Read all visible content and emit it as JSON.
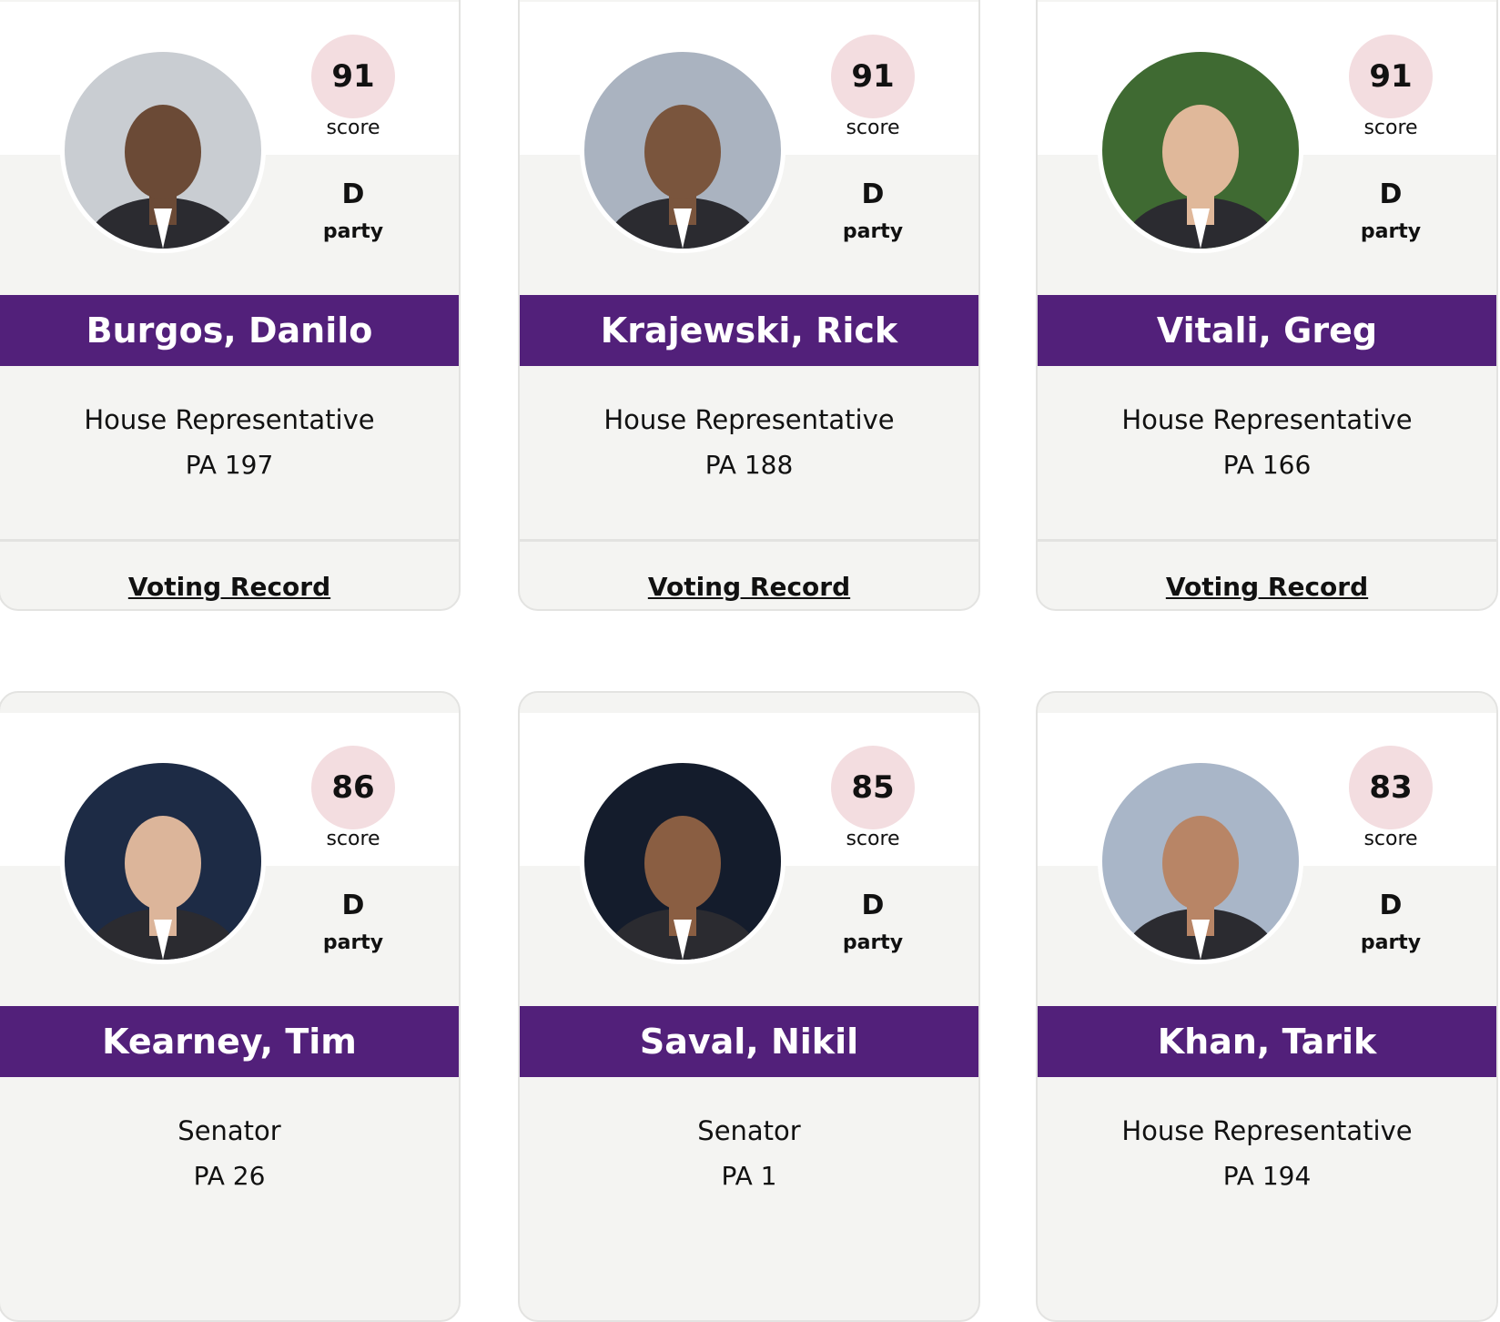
{
  "cards": [
    {
      "score": 91,
      "score_label": "score",
      "party": "D",
      "party_label": "party",
      "name": "Burgos, Danilo",
      "role": "House Representative",
      "district": "PA 197",
      "link": "Voting Record"
    },
    {
      "score": 91,
      "score_label": "score",
      "party": "D",
      "party_label": "party",
      "name": "Krajewski, Rick",
      "role": "House Representative",
      "district": "PA 188",
      "link": "Voting Record"
    },
    {
      "score": 91,
      "score_label": "score",
      "party": "D",
      "party_label": "party",
      "name": "Vitali, Greg",
      "role": "House Representative",
      "district": "PA 166",
      "link": "Voting Record"
    },
    {
      "score": 86,
      "score_label": "score",
      "party": "D",
      "party_label": "party",
      "name": "Kearney, Tim",
      "role": "Senator",
      "district": "PA 26"
    },
    {
      "score": 85,
      "score_label": "score",
      "party": "D",
      "party_label": "party",
      "name": "Saval, Nikil",
      "role": "Senator",
      "district": "PA 1"
    },
    {
      "score": 83,
      "score_label": "score",
      "party": "D",
      "party_label": "party",
      "name": "Khan, Tarik",
      "role": "House Representative",
      "district": "PA 194"
    }
  ]
}
